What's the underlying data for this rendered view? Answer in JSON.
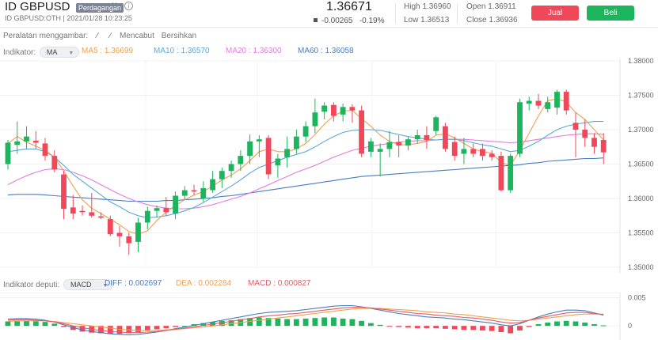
{
  "header": {
    "symbol": "ID GBPUSD",
    "badge": "Perdagangan",
    "subtitle": "ID GBPUSD:OTH | 2021/01/28 10:23:25",
    "price": "1.36671",
    "change": "-0.00265",
    "change_pct": "-0.19%",
    "high_label": "High",
    "high_value": "1.36960",
    "low_label": "Low",
    "low_value": "1.36513",
    "open_label": "Open",
    "open_value": "1.36911",
    "close_label": "Close",
    "close_value": "1.36936",
    "sell_label": "Jual",
    "buy_label": "Beli",
    "sell_color": "#f0475a",
    "buy_color": "#1db45e"
  },
  "toolbar": {
    "drawing_label": "Peralatan menggambar:",
    "undo_label": "Mencabut",
    "clear_label": "Bersihkan"
  },
  "indicator": {
    "label": "Indikator:",
    "select": "MA",
    "ma5": "MA5 : 1.36699",
    "ma10": "MA10 : 1.36570",
    "ma20": "MA20 : 1.36300",
    "ma60": "MA60 : 1.36058",
    "colors": {
      "ma5": "#f0a050",
      "ma10": "#5aaad8",
      "ma20": "#e37ce0",
      "ma60": "#4a7cc0"
    }
  },
  "sub_indicator": {
    "label": "Indikator deputi:",
    "select": "MACD",
    "diff": "DIFF : 0.002697",
    "dea": "DEA : 0.002284",
    "macd": "MACD : 0.000827"
  },
  "chart_data": {
    "type": "candlestick",
    "ylim": [
      1.35,
      1.38
    ],
    "yticks": [
      "1.38000",
      "1.37500",
      "1.37000",
      "1.36500",
      "1.36000",
      "1.35500",
      "1.35000"
    ],
    "up_color": "#1db45e",
    "down_color": "#f0475a",
    "candles": [
      {
        "o": 1.365,
        "h": 1.3685,
        "l": 1.3642,
        "c": 1.3681
      },
      {
        "o": 1.3678,
        "h": 1.3712,
        "l": 1.3665,
        "c": 1.3683
      },
      {
        "o": 1.3683,
        "h": 1.3705,
        "l": 1.3672,
        "c": 1.369
      },
      {
        "o": 1.3684,
        "h": 1.3698,
        "l": 1.3672,
        "c": 1.3681
      },
      {
        "o": 1.368,
        "h": 1.3688,
        "l": 1.3655,
        "c": 1.3662
      },
      {
        "o": 1.3662,
        "h": 1.367,
        "l": 1.3638,
        "c": 1.3642
      },
      {
        "o": 1.3635,
        "h": 1.364,
        "l": 1.357,
        "c": 1.3585
      },
      {
        "o": 1.3587,
        "h": 1.3605,
        "l": 1.357,
        "c": 1.3578
      },
      {
        "o": 1.3582,
        "h": 1.359,
        "l": 1.3575,
        "c": 1.358
      },
      {
        "o": 1.358,
        "h": 1.3608,
        "l": 1.3572,
        "c": 1.3575
      },
      {
        "o": 1.3574,
        "h": 1.358,
        "l": 1.357,
        "c": 1.3572
      },
      {
        "o": 1.357,
        "h": 1.3575,
        "l": 1.3545,
        "c": 1.3548
      },
      {
        "o": 1.355,
        "h": 1.356,
        "l": 1.353,
        "c": 1.3545
      },
      {
        "o": 1.3545,
        "h": 1.355,
        "l": 1.3518,
        "c": 1.3535
      },
      {
        "o": 1.3537,
        "h": 1.3572,
        "l": 1.3522,
        "c": 1.3565
      },
      {
        "o": 1.3565,
        "h": 1.3588,
        "l": 1.3555,
        "c": 1.3582
      },
      {
        "o": 1.3582,
        "h": 1.359,
        "l": 1.3572,
        "c": 1.3586
      },
      {
        "o": 1.3586,
        "h": 1.3602,
        "l": 1.3575,
        "c": 1.358
      },
      {
        "o": 1.3578,
        "h": 1.361,
        "l": 1.357,
        "c": 1.3604
      },
      {
        "o": 1.3604,
        "h": 1.3618,
        "l": 1.3598,
        "c": 1.3612
      },
      {
        "o": 1.3612,
        "h": 1.362,
        "l": 1.3605,
        "c": 1.361
      },
      {
        "o": 1.36,
        "h": 1.3625,
        "l": 1.3595,
        "c": 1.3615
      },
      {
        "o": 1.3612,
        "h": 1.364,
        "l": 1.3608,
        "c": 1.3628
      },
      {
        "o": 1.3628,
        "h": 1.3645,
        "l": 1.3615,
        "c": 1.364
      },
      {
        "o": 1.364,
        "h": 1.3655,
        "l": 1.363,
        "c": 1.365
      },
      {
        "o": 1.365,
        "h": 1.367,
        "l": 1.364,
        "c": 1.3662
      },
      {
        "o": 1.3662,
        "h": 1.3693,
        "l": 1.365,
        "c": 1.3683
      },
      {
        "o": 1.3683,
        "h": 1.3692,
        "l": 1.366,
        "c": 1.3686
      },
      {
        "o": 1.3688,
        "h": 1.3692,
        "l": 1.3628,
        "c": 1.3635
      },
      {
        "o": 1.3648,
        "h": 1.3665,
        "l": 1.363,
        "c": 1.3658
      },
      {
        "o": 1.366,
        "h": 1.369,
        "l": 1.3645,
        "c": 1.3672
      },
      {
        "o": 1.3672,
        "h": 1.37,
        "l": 1.3665,
        "c": 1.369
      },
      {
        "o": 1.369,
        "h": 1.3712,
        "l": 1.3682,
        "c": 1.3705
      },
      {
        "o": 1.3705,
        "h": 1.3745,
        "l": 1.3695,
        "c": 1.3725
      },
      {
        "o": 1.3726,
        "h": 1.374,
        "l": 1.3715,
        "c": 1.3735
      },
      {
        "o": 1.3736,
        "h": 1.374,
        "l": 1.3712,
        "c": 1.372
      },
      {
        "o": 1.3722,
        "h": 1.3738,
        "l": 1.3712,
        "c": 1.3733
      },
      {
        "o": 1.3733,
        "h": 1.3737,
        "l": 1.371,
        "c": 1.3728
      },
      {
        "o": 1.3728,
        "h": 1.3735,
        "l": 1.366,
        "c": 1.3665
      },
      {
        "o": 1.3668,
        "h": 1.3688,
        "l": 1.366,
        "c": 1.3683
      },
      {
        "o": 1.3668,
        "h": 1.368,
        "l": 1.3632,
        "c": 1.3672
      },
      {
        "o": 1.3672,
        "h": 1.3698,
        "l": 1.366,
        "c": 1.3682
      },
      {
        "o": 1.3682,
        "h": 1.3692,
        "l": 1.366,
        "c": 1.3677
      },
      {
        "o": 1.3677,
        "h": 1.369,
        "l": 1.367,
        "c": 1.3686
      },
      {
        "o": 1.3686,
        "h": 1.37,
        "l": 1.368,
        "c": 1.3692
      },
      {
        "o": 1.3692,
        "h": 1.3705,
        "l": 1.3672,
        "c": 1.3685
      },
      {
        "o": 1.3698,
        "h": 1.372,
        "l": 1.3692,
        "c": 1.3718
      },
      {
        "o": 1.3705,
        "h": 1.371,
        "l": 1.3668,
        "c": 1.3672
      },
      {
        "o": 1.3682,
        "h": 1.369,
        "l": 1.3655,
        "c": 1.3662
      },
      {
        "o": 1.3665,
        "h": 1.3688,
        "l": 1.365,
        "c": 1.3672
      },
      {
        "o": 1.3672,
        "h": 1.368,
        "l": 1.366,
        "c": 1.3665
      },
      {
        "o": 1.3672,
        "h": 1.368,
        "l": 1.3655,
        "c": 1.3662
      },
      {
        "o": 1.3665,
        "h": 1.367,
        "l": 1.3655,
        "c": 1.366
      },
      {
        "o": 1.3662,
        "h": 1.3668,
        "l": 1.361,
        "c": 1.3612
      },
      {
        "o": 1.3612,
        "h": 1.3665,
        "l": 1.3608,
        "c": 1.3662
      },
      {
        "o": 1.3665,
        "h": 1.3745,
        "l": 1.366,
        "c": 1.374
      },
      {
        "o": 1.3738,
        "h": 1.3748,
        "l": 1.3728,
        "c": 1.3742
      },
      {
        "o": 1.3742,
        "h": 1.3752,
        "l": 1.373,
        "c": 1.3735
      },
      {
        "o": 1.373,
        "h": 1.3748,
        "l": 1.3725,
        "c": 1.374
      },
      {
        "o": 1.3732,
        "h": 1.3758,
        "l": 1.3722,
        "c": 1.3755
      },
      {
        "o": 1.3755,
        "h": 1.3758,
        "l": 1.3722,
        "c": 1.3728
      },
      {
        "o": 1.371,
        "h": 1.3725,
        "l": 1.366,
        "c": 1.37
      },
      {
        "o": 1.37,
        "h": 1.3715,
        "l": 1.3675,
        "c": 1.3688
      },
      {
        "o": 1.3688,
        "h": 1.3695,
        "l": 1.3665,
        "c": 1.3675
      },
      {
        "o": 1.3685,
        "h": 1.3695,
        "l": 1.365,
        "c": 1.3667
      }
    ],
    "ma5": [
      1.368,
      1.369,
      1.3682,
      1.3676,
      1.367,
      1.366,
      1.364,
      1.3618,
      1.3598,
      1.3586,
      1.3578,
      1.357,
      1.3562,
      1.3552,
      1.3548,
      1.3553,
      1.3568,
      1.358,
      1.359,
      1.3598,
      1.3605,
      1.361,
      1.3618,
      1.3627,
      1.3634,
      1.3643,
      1.3655,
      1.3668,
      1.3672,
      1.3668,
      1.3668,
      1.3672,
      1.368,
      1.3693,
      1.3708,
      1.372,
      1.3727,
      1.3728,
      1.3716,
      1.3705,
      1.3692,
      1.3683,
      1.3678,
      1.3678,
      1.368,
      1.3683,
      1.3692,
      1.3694,
      1.3688,
      1.368,
      1.3672,
      1.3668,
      1.3666,
      1.3652,
      1.3648,
      1.367,
      1.3695,
      1.372,
      1.3742,
      1.3745,
      1.374,
      1.3725,
      1.3715,
      1.37,
      1.3685
    ],
    "ma10": [
      1.3668,
      1.367,
      1.3672,
      1.3672,
      1.3668,
      1.366,
      1.3648,
      1.3635,
      1.3625,
      1.3615,
      1.3605,
      1.3595,
      1.3588,
      1.358,
      1.3575,
      1.3572,
      1.3573,
      1.3575,
      1.3578,
      1.3582,
      1.3587,
      1.3594,
      1.3602,
      1.361,
      1.3618,
      1.3627,
      1.3637,
      1.3645,
      1.365,
      1.3655,
      1.366,
      1.3664,
      1.3668,
      1.3675,
      1.3683,
      1.369,
      1.3696,
      1.3699,
      1.37,
      1.37,
      1.3699,
      1.3696,
      1.3693,
      1.369,
      1.3688,
      1.3686,
      1.3685,
      1.3686,
      1.3686,
      1.3684,
      1.3681,
      1.3678,
      1.3676,
      1.3672,
      1.3668,
      1.367,
      1.3676,
      1.3683,
      1.3692,
      1.37,
      1.3705,
      1.3708,
      1.371,
      1.3712,
      1.3712
    ],
    "ma20": [
      1.362,
      1.3627,
      1.3633,
      1.3638,
      1.3642,
      1.3643,
      1.3642,
      1.3638,
      1.3633,
      1.3627,
      1.362,
      1.3613,
      1.3606,
      1.36,
      1.3595,
      1.3591,
      1.3588,
      1.3586,
      1.3585,
      1.3585,
      1.3586,
      1.3588,
      1.3591,
      1.3595,
      1.3599,
      1.3603,
      1.3608,
      1.3614,
      1.362,
      1.3626,
      1.3632,
      1.3638,
      1.3643,
      1.3648,
      1.3654,
      1.366,
      1.3665,
      1.367,
      1.3673,
      1.3676,
      1.3678,
      1.368,
      1.3682,
      1.3683,
      1.3684,
      1.3684,
      1.3685,
      1.3686,
      1.3686,
      1.3686,
      1.3685,
      1.3684,
      1.3683,
      1.3682,
      1.3681,
      1.3682,
      1.3684,
      1.3686,
      1.3688,
      1.369,
      1.3692,
      1.3693,
      1.3694,
      1.3694,
      1.3693
    ],
    "ma60": [
      1.3605,
      1.3606,
      1.3606,
      1.3606,
      1.3605,
      1.3604,
      1.3603,
      1.3602,
      1.3601,
      1.36,
      1.3599,
      1.3598,
      1.3597,
      1.3596,
      1.3596,
      1.3596,
      1.3596,
      1.3597,
      1.3597,
      1.3598,
      1.3599,
      1.36,
      1.3601,
      1.3603,
      1.3604,
      1.3606,
      1.3608,
      1.361,
      1.3612,
      1.3614,
      1.3616,
      1.3618,
      1.362,
      1.3622,
      1.3624,
      1.3626,
      1.3628,
      1.363,
      1.3632,
      1.3633,
      1.3634,
      1.3635,
      1.3636,
      1.3637,
      1.3638,
      1.3639,
      1.364,
      1.3641,
      1.3642,
      1.3643,
      1.3644,
      1.3645,
      1.3646,
      1.3647,
      1.3648,
      1.3649,
      1.3651,
      1.3652,
      1.3654,
      1.3655,
      1.3656,
      1.3657,
      1.3658,
      1.3658,
      1.3659
    ],
    "macd_yticks": [
      "0.005",
      "0"
    ],
    "macd_ylim": [
      -0.0018,
      0.0055
    ],
    "macd_hist": [
      0.0008,
      0.0008,
      0.0009,
      0.0008,
      0.0007,
      0.0004,
      -0.0002,
      -0.0007,
      -0.001,
      -0.0012,
      -0.0013,
      -0.0014,
      -0.0014,
      -0.0013,
      -0.0011,
      -0.0009,
      -0.0006,
      -0.0004,
      -0.0002,
      0.0,
      0.0003,
      0.0005,
      0.0007,
      0.0009,
      0.001,
      0.0012,
      0.0014,
      0.0015,
      0.0014,
      0.0013,
      0.0012,
      0.0012,
      0.0013,
      0.0014,
      0.0015,
      0.0015,
      0.0013,
      0.0012,
      0.0009,
      0.0005,
      0.0002,
      -0.0001,
      -0.0002,
      -0.0003,
      -0.0004,
      -0.0004,
      -0.0004,
      -0.0005,
      -0.0006,
      -0.0007,
      -0.0007,
      -0.0008,
      -0.0009,
      -0.0011,
      -0.0013,
      -0.0008,
      -0.0002,
      0.0003,
      0.0006,
      0.0008,
      0.0009,
      0.0008,
      0.0006,
      0.0003,
      0.0001
    ],
    "diff": [
      0.0012,
      0.0013,
      0.0013,
      0.0012,
      0.001,
      0.0007,
      0.0002,
      -0.0003,
      -0.0007,
      -0.001,
      -0.0012,
      -0.0014,
      -0.0015,
      -0.0016,
      -0.0015,
      -0.0013,
      -0.0011,
      -0.0008,
      -0.0005,
      -0.0002,
      0.0001,
      0.0004,
      0.0007,
      0.001,
      0.0013,
      0.0016,
      0.0019,
      0.0022,
      0.0024,
      0.0025,
      0.0026,
      0.0027,
      0.0029,
      0.0031,
      0.0033,
      0.0035,
      0.0036,
      0.0036,
      0.0034,
      0.0031,
      0.0028,
      0.0025,
      0.0022,
      0.002,
      0.0018,
      0.0016,
      0.0015,
      0.0014,
      0.0012,
      0.0011,
      0.0009,
      0.0007,
      0.0005,
      0.0002,
      0.0,
      0.0004,
      0.001,
      0.0016,
      0.0021,
      0.0025,
      0.0028,
      0.0028,
      0.0027,
      0.0023,
      0.0019
    ],
    "dea": [
      0.0008,
      0.0009,
      0.0009,
      0.0009,
      0.0009,
      0.0008,
      0.0006,
      0.0004,
      0.0002,
      0.0,
      -0.0002,
      -0.0004,
      -0.0006,
      -0.0007,
      -0.0008,
      -0.0008,
      -0.0008,
      -0.0007,
      -0.0006,
      -0.0005,
      -0.0003,
      -0.0002,
      0.0,
      0.0002,
      0.0004,
      0.0006,
      0.0008,
      0.001,
      0.0012,
      0.0014,
      0.0016,
      0.0018,
      0.002,
      0.0022,
      0.0024,
      0.0026,
      0.0028,
      0.003,
      0.0031,
      0.0031,
      0.0031,
      0.003,
      0.0029,
      0.0028,
      0.0027,
      0.0025,
      0.0024,
      0.0023,
      0.0021,
      0.002,
      0.0018,
      0.0016,
      0.0014,
      0.0012,
      0.001,
      0.0009,
      0.001,
      0.0012,
      0.0014,
      0.0016,
      0.0018,
      0.002,
      0.0021,
      0.0021,
      0.0021
    ],
    "macd_line": [
      0.001,
      0.0011,
      0.0011,
      0.001,
      0.0009,
      0.0007,
      0.0004,
      0.0,
      -0.0003,
      -0.0006,
      -0.0008,
      -0.001,
      -0.0011,
      -0.0012,
      -0.0012,
      -0.0011,
      -0.001,
      -0.0008,
      -0.0006,
      -0.0004,
      -0.0002,
      0.0001,
      0.0003,
      0.0006,
      0.0008,
      0.0011,
      0.0013,
      0.0016,
      0.0018,
      0.0019,
      0.0021,
      0.0022,
      0.0024,
      0.0026,
      0.0028,
      0.003,
      0.0032,
      0.0033,
      0.0033,
      0.0032,
      0.003,
      0.0028,
      0.0026,
      0.0024,
      0.0022,
      0.0021,
      0.0019,
      0.0018,
      0.0017,
      0.0015,
      0.0014,
      0.0012,
      0.001,
      0.0007,
      0.0005,
      0.0006,
      0.001,
      0.0014,
      0.0017,
      0.002,
      0.0023,
      0.0024,
      0.0024,
      0.0022,
      0.002
    ],
    "macd_colors": {
      "diff": "#4a7cc0",
      "dea": "#f0a050",
      "macd": "#e35b63"
    }
  }
}
